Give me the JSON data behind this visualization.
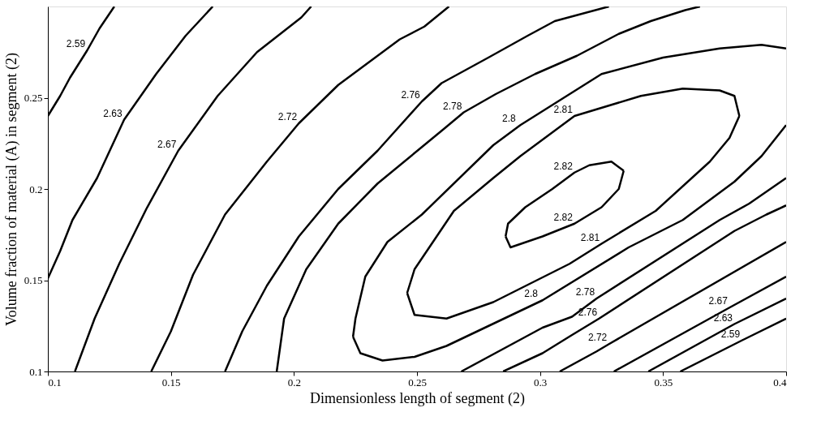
{
  "chart_data": {
    "type": "line",
    "xlabel": "Dimensionless length of segment (2)",
    "ylabel": "Volume fraction of material (A) in segment (2)",
    "xlim": [
      0.1,
      0.4
    ],
    "ylim": [
      0.1,
      0.3
    ],
    "xticks": [
      {
        "value": 0.1,
        "label": "0.1"
      },
      0.15,
      {
        "value": 0.2,
        "label": "0.2"
      },
      0.25,
      {
        "value": 0.3,
        "label": "0.3"
      },
      0.35,
      {
        "value": 0.4,
        "label": "0.4"
      }
    ],
    "yticks": [
      {
        "value": 0.1,
        "label": "0.1"
      },
      0.15,
      {
        "value": 0.2,
        "label": "0.2"
      },
      0.25
    ],
    "grid": false,
    "legend": false,
    "marker": "none",
    "line_style": "solid",
    "series": [
      {
        "name": "2.59",
        "color": "#000000",
        "x": [
          0.1,
          0.105,
          0.109,
          0.116,
          0.121,
          0.127
        ],
        "values": [
          0.24,
          0.251,
          0.261,
          0.276,
          0.288,
          0.3
        ]
      },
      {
        "name": "2.63",
        "color": "#000000",
        "x": [
          0.1,
          0.105,
          0.11,
          0.12,
          0.131,
          0.144,
          0.156,
          0.167
        ],
        "values": [
          0.151,
          0.166,
          0.183,
          0.206,
          0.238,
          0.263,
          0.284,
          0.3
        ]
      },
      {
        "name": "2.67",
        "color": "#000000",
        "x": [
          0.111,
          0.119,
          0.129,
          0.14,
          0.153,
          0.169,
          0.185,
          0.203,
          0.207
        ],
        "values": [
          0.1,
          0.129,
          0.159,
          0.189,
          0.221,
          0.251,
          0.275,
          0.294,
          0.3
        ]
      },
      {
        "name": "2.72",
        "color": "#000000",
        "x": [
          0.142,
          0.15,
          0.159,
          0.172,
          0.189,
          0.202,
          0.218,
          0.243,
          0.253,
          0.263
        ],
        "values": [
          0.1,
          0.122,
          0.153,
          0.186,
          0.215,
          0.236,
          0.257,
          0.282,
          0.289,
          0.3
        ]
      },
      {
        "name": "2.76",
        "color": "#000000",
        "x": [
          0.172,
          0.179,
          0.189,
          0.202,
          0.218,
          0.234,
          0.252,
          0.26,
          0.279,
          0.295,
          0.306,
          0.328
        ],
        "values": [
          0.1,
          0.122,
          0.147,
          0.174,
          0.2,
          0.221,
          0.248,
          0.258,
          0.272,
          0.284,
          0.292,
          0.3
        ]
      },
      {
        "name": "2.78",
        "color": "#000000",
        "x": [
          0.193,
          0.196,
          0.205,
          0.218,
          0.234,
          0.252,
          0.261,
          0.269,
          0.282,
          0.298,
          0.315,
          0.332,
          0.345,
          0.359,
          0.365
        ],
        "values": [
          0.1,
          0.129,
          0.156,
          0.181,
          0.203,
          0.223,
          0.233,
          0.242,
          0.252,
          0.263,
          0.273,
          0.285,
          0.292,
          0.298,
          0.3
        ]
      },
      {
        "name": "2.8",
        "color": "#000000",
        "x": [
          0.224,
          0.225,
          0.229,
          0.238,
          0.252,
          0.281,
          0.292,
          0.325,
          0.35,
          0.373,
          0.39,
          0.4
        ],
        "values": [
          0.119,
          0.129,
          0.152,
          0.171,
          0.186,
          0.224,
          0.235,
          0.263,
          0.272,
          0.277,
          0.279,
          0.277
        ]
      },
      {
        "name": "2.8",
        "color": "#000000",
        "x": [
          0.224,
          0.227,
          0.236,
          0.249,
          0.262,
          0.301,
          0.336,
          0.358,
          0.379,
          0.39,
          0.4
        ],
        "values": [
          0.119,
          0.11,
          0.106,
          0.108,
          0.114,
          0.139,
          0.168,
          0.183,
          0.204,
          0.218,
          0.235
        ]
      },
      {
        "name": "2.81",
        "color": "#000000",
        "x": [
          0.246,
          0.249,
          0.265,
          0.281,
          0.292,
          0.314,
          0.341,
          0.358,
          0.373,
          0.379,
          0.381
        ],
        "values": [
          0.143,
          0.156,
          0.188,
          0.206,
          0.218,
          0.24,
          0.251,
          0.255,
          0.254,
          0.251,
          0.24
        ]
      },
      {
        "name": "2.81",
        "color": "#000000",
        "x": [
          0.246,
          0.249,
          0.262,
          0.281,
          0.312,
          0.325,
          0.347,
          0.369,
          0.377,
          0.381
        ],
        "values": [
          0.143,
          0.131,
          0.129,
          0.138,
          0.159,
          0.17,
          0.188,
          0.215,
          0.228,
          0.24
        ]
      },
      {
        "name": "2.82",
        "color": "#000000",
        "x": [
          0.286,
          0.287,
          0.294,
          0.305,
          0.314,
          0.32,
          0.329,
          0.334
        ],
        "values": [
          0.174,
          0.181,
          0.19,
          0.2,
          0.209,
          0.213,
          0.215,
          0.21
        ]
      },
      {
        "name": "2.82",
        "color": "#000000",
        "x": [
          0.286,
          0.288,
          0.301,
          0.314,
          0.325,
          0.332,
          0.334
        ],
        "values": [
          0.174,
          0.168,
          0.174,
          0.181,
          0.19,
          0.2,
          0.21
        ]
      },
      {
        "name": "2.78",
        "color": "#000000",
        "x": [
          0.268,
          0.301,
          0.313,
          0.323,
          0.373,
          0.385,
          0.4
        ],
        "values": [
          0.1,
          0.124,
          0.13,
          0.14,
          0.183,
          0.192,
          0.206
        ]
      },
      {
        "name": "2.76",
        "color": "#000000",
        "x": [
          0.285,
          0.301,
          0.313,
          0.324,
          0.379,
          0.392,
          0.4
        ],
        "values": [
          0.1,
          0.11,
          0.12,
          0.129,
          0.177,
          0.186,
          0.191
        ]
      },
      {
        "name": "2.72",
        "color": "#000000",
        "x": [
          0.308,
          0.323,
          0.328,
          0.4
        ],
        "values": [
          0.1,
          0.111,
          0.115,
          0.171
        ]
      },
      {
        "name": "2.67",
        "color": "#000000",
        "x": [
          0.33,
          0.377,
          0.4
        ],
        "values": [
          0.1,
          0.135,
          0.152
        ]
      },
      {
        "name": "2.63",
        "color": "#000000",
        "x": [
          0.344,
          0.379,
          0.4
        ],
        "values": [
          0.1,
          0.126,
          0.14
        ]
      },
      {
        "name": "2.59",
        "color": "#000000",
        "x": [
          0.357,
          0.382,
          0.4
        ],
        "values": [
          0.1,
          0.117,
          0.129
        ]
      }
    ]
  }
}
